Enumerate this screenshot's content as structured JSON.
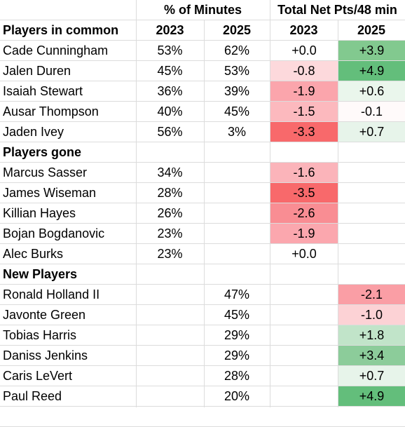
{
  "header": {
    "minutes_group": "% of Minutes",
    "netpts_group": "Total Net Pts/48 min"
  },
  "rows": [
    {
      "kind": "section",
      "name": "Players in common",
      "m2023": "2023",
      "m2025": "2025",
      "n2023": "2023",
      "n2025": "2025"
    },
    {
      "kind": "player",
      "name": "Cade Cunningham",
      "m2023": "53%",
      "m2025": "62%",
      "n2023": "+0.0",
      "n2025": "+3.9",
      "n2023_color": "#ffffff",
      "n2025_color": "#82c98f"
    },
    {
      "kind": "player",
      "name": "Jalen Duren",
      "m2023": "45%",
      "m2025": "53%",
      "n2023": "-0.8",
      "n2025": "+4.9",
      "n2023_color": "#fdd9dc",
      "n2025_color": "#63be7b"
    },
    {
      "kind": "player",
      "name": "Isaiah Stewart",
      "m2023": "36%",
      "m2025": "39%",
      "n2023": "-1.9",
      "n2025": "+0.6",
      "n2023_color": "#fba5ac",
      "n2025_color": "#eaf6ec"
    },
    {
      "kind": "player",
      "name": "Ausar Thompson",
      "m2023": "40%",
      "m2025": "45%",
      "n2023": "-1.5",
      "n2025": "-0.1",
      "n2023_color": "#fcb9be",
      "n2025_color": "#fffafa"
    },
    {
      "kind": "player",
      "name": "Jaden Ivey",
      "m2023": "56%",
      "m2025": "3%",
      "n2023": "-3.3",
      "n2025": "+0.7",
      "n2023_color": "#f8696b",
      "n2025_color": "#e7f4ea"
    },
    {
      "kind": "section",
      "name": "Players gone",
      "m2023": "",
      "m2025": "",
      "n2023": "",
      "n2025": ""
    },
    {
      "kind": "player",
      "name": "Marcus Sasser",
      "m2023": "34%",
      "m2025": "",
      "n2023": "-1.6",
      "n2025": "",
      "n2023_color": "#fbb4ba",
      "n2025_color": "#ffffff"
    },
    {
      "kind": "player",
      "name": "James Wiseman",
      "m2023": "28%",
      "m2025": "",
      "n2023": "-3.5",
      "n2025": "",
      "n2023_color": "#f8696b",
      "n2025_color": "#ffffff"
    },
    {
      "kind": "player",
      "name": "Killian Hayes",
      "m2023": "26%",
      "m2025": "",
      "n2023": "-2.6",
      "n2025": "",
      "n2023_color": "#f98d93",
      "n2025_color": "#ffffff"
    },
    {
      "kind": "player",
      "name": "Bojan Bogdanovic",
      "m2023": "23%",
      "m2025": "",
      "n2023": "-1.9",
      "n2025": "",
      "n2023_color": "#fba7ae",
      "n2025_color": "#ffffff"
    },
    {
      "kind": "player",
      "name": "Alec Burks",
      "m2023": "23%",
      "m2025": "",
      "n2023": "+0.0",
      "n2025": "",
      "n2023_color": "#ffffff",
      "n2025_color": "#ffffff"
    },
    {
      "kind": "section",
      "name": "New Players",
      "m2023": "",
      "m2025": "",
      "n2023": "",
      "n2025": ""
    },
    {
      "kind": "player",
      "name": "Ronald Holland II",
      "m2023": "",
      "m2025": "47%",
      "n2023": "",
      "n2025": "-2.1",
      "n2023_color": "#ffffff",
      "n2025_color": "#fa9ea5"
    },
    {
      "kind": "player",
      "name": "Javonte Green",
      "m2023": "",
      "m2025": "45%",
      "n2023": "",
      "n2025": "-1.0",
      "n2023_color": "#ffffff",
      "n2025_color": "#fcd2d5"
    },
    {
      "kind": "player",
      "name": "Tobias Harris",
      "m2023": "",
      "m2025": "29%",
      "n2023": "",
      "n2025": "+1.8",
      "n2023_color": "#ffffff",
      "n2025_color": "#c1e4c9"
    },
    {
      "kind": "player",
      "name": "Daniss Jenkins",
      "m2023": "",
      "m2025": "29%",
      "n2023": "",
      "n2025": "+3.4",
      "n2023_color": "#ffffff",
      "n2025_color": "#8ccc9a"
    },
    {
      "kind": "player",
      "name": "Caris LeVert",
      "m2023": "",
      "m2025": "28%",
      "n2023": "",
      "n2025": "+0.7",
      "n2023_color": "#ffffff",
      "n2025_color": "#e7f4ea"
    },
    {
      "kind": "player",
      "name": "Paul Reed",
      "m2023": "",
      "m2025": "20%",
      "n2023": "",
      "n2025": "+4.9",
      "n2023_color": "#ffffff",
      "n2025_color": "#63be7b"
    }
  ]
}
